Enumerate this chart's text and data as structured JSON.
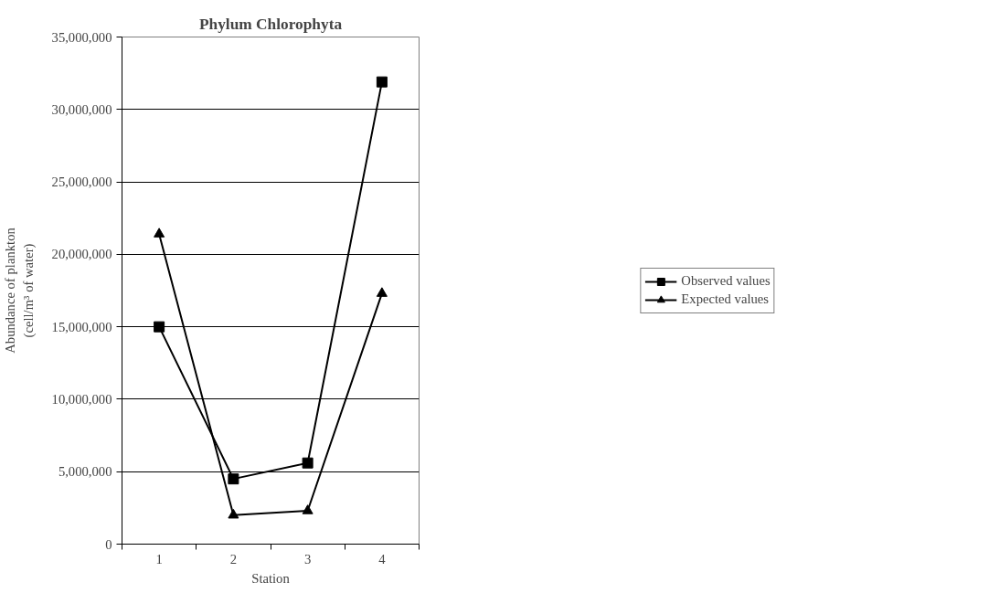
{
  "chart_data": {
    "type": "line",
    "title": "Phylum Chlorophyta",
    "xlabel": "Station",
    "ylabel": "Abundance of plankton\n(cell/m³ of water)",
    "categories": [
      "1",
      "2",
      "3",
      "4"
    ],
    "series": [
      {
        "name": "Observed values",
        "color": "#000000",
        "marker": "square",
        "values": [
          15000000,
          4500000,
          5600000,
          31900000
        ]
      },
      {
        "name": "Expected values",
        "color": "#000000",
        "marker": "triangle",
        "values": [
          21400000,
          2000000,
          2300000,
          17300000
        ]
      }
    ],
    "ylim": [
      0,
      35000000
    ],
    "yticks": [
      {
        "value": 0,
        "label": "0"
      },
      {
        "value": 5000000,
        "label": "5,000,000"
      },
      {
        "value": 10000000,
        "label": "10,000,000"
      },
      {
        "value": 15000000,
        "label": "15,000,000"
      },
      {
        "value": 20000000,
        "label": "20,000,000"
      },
      {
        "value": 25000000,
        "label": "25,000,000"
      },
      {
        "value": 30000000,
        "label": "30,000,000"
      },
      {
        "value": 35000000,
        "label": "35,000,000"
      }
    ],
    "grid": "y",
    "legend": "right",
    "line_style": "solid"
  }
}
